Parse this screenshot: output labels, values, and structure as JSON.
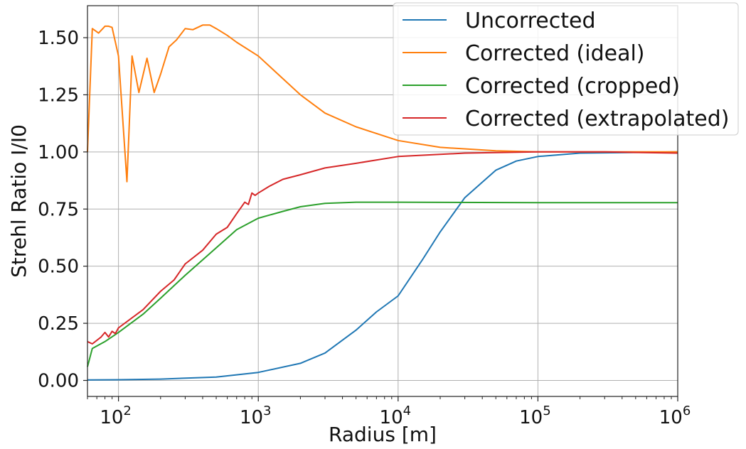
{
  "chart_data": {
    "type": "line",
    "xlabel": "Radius [m]",
    "ylabel": "Strehl Ratio I/I0",
    "xscale": "log",
    "xlim": [
      60,
      1000000
    ],
    "ylim": [
      -0.07,
      1.64
    ],
    "grid": true,
    "legend_position": "top-right",
    "x_ticks": [
      {
        "value": 100,
        "base": "10",
        "exp": "2"
      },
      {
        "value": 1000,
        "base": "10",
        "exp": "3"
      },
      {
        "value": 10000,
        "base": "10",
        "exp": "4"
      },
      {
        "value": 100000,
        "base": "10",
        "exp": "5"
      },
      {
        "value": 1000000,
        "base": "10",
        "exp": "6"
      }
    ],
    "y_ticks": [
      {
        "value": 0.0,
        "label": "0.00"
      },
      {
        "value": 0.25,
        "label": "0.25"
      },
      {
        "value": 0.5,
        "label": "0.50"
      },
      {
        "value": 0.75,
        "label": "0.75"
      },
      {
        "value": 1.0,
        "label": "1.00"
      },
      {
        "value": 1.25,
        "label": "1.25"
      },
      {
        "value": 1.5,
        "label": "1.50"
      }
    ],
    "series": [
      {
        "name": "Uncorrected",
        "color": "#1f77b4",
        "x": [
          60,
          100,
          200,
          500,
          1000,
          2000,
          3000,
          5000,
          7000,
          10000,
          15000,
          20000,
          30000,
          50000,
          70000,
          100000,
          200000,
          1000000
        ],
        "y": [
          0.002,
          0.003,
          0.006,
          0.015,
          0.035,
          0.075,
          0.12,
          0.22,
          0.3,
          0.37,
          0.53,
          0.65,
          0.8,
          0.92,
          0.96,
          0.98,
          0.995,
          1.0
        ]
      },
      {
        "name": "Corrected (ideal)",
        "color": "#ff7f0e",
        "x": [
          60,
          65,
          72,
          80,
          85,
          90,
          100,
          115,
          125,
          140,
          160,
          180,
          200,
          230,
          260,
          300,
          340,
          400,
          450,
          500,
          600,
          700,
          1000,
          2000,
          3000,
          5000,
          10000,
          20000,
          50000,
          100000,
          1000000
        ],
        "y": [
          1.0,
          1.54,
          1.52,
          1.55,
          1.55,
          1.545,
          1.42,
          0.87,
          1.42,
          1.26,
          1.41,
          1.26,
          1.34,
          1.46,
          1.49,
          1.54,
          1.535,
          1.555,
          1.555,
          1.54,
          1.51,
          1.48,
          1.42,
          1.25,
          1.17,
          1.11,
          1.05,
          1.02,
          1.005,
          1.0,
          1.0
        ]
      },
      {
        "name": "Corrected (cropped)",
        "color": "#2ca02c",
        "x": [
          60,
          65,
          80,
          100,
          150,
          200,
          300,
          500,
          700,
          1000,
          1500,
          2000,
          3000,
          5000,
          10000,
          100000,
          1000000
        ],
        "y": [
          0.06,
          0.14,
          0.17,
          0.21,
          0.29,
          0.36,
          0.46,
          0.58,
          0.66,
          0.71,
          0.74,
          0.76,
          0.775,
          0.78,
          0.78,
          0.778,
          0.778
        ]
      },
      {
        "name": "Corrected (extrapolated)",
        "color": "#d62728",
        "x": [
          60,
          65,
          75,
          80,
          85,
          90,
          95,
          100,
          150,
          200,
          250,
          300,
          400,
          500,
          600,
          700,
          800,
          850,
          900,
          950,
          1000,
          1200,
          1500,
          2000,
          3000,
          5000,
          10000,
          30000,
          100000,
          300000,
          1000000
        ],
        "y": [
          0.17,
          0.16,
          0.19,
          0.21,
          0.19,
          0.215,
          0.205,
          0.23,
          0.31,
          0.39,
          0.44,
          0.51,
          0.57,
          0.64,
          0.67,
          0.73,
          0.78,
          0.77,
          0.82,
          0.81,
          0.82,
          0.85,
          0.88,
          0.9,
          0.93,
          0.95,
          0.98,
          0.995,
          1.0,
          1.0,
          0.995
        ]
      }
    ]
  }
}
